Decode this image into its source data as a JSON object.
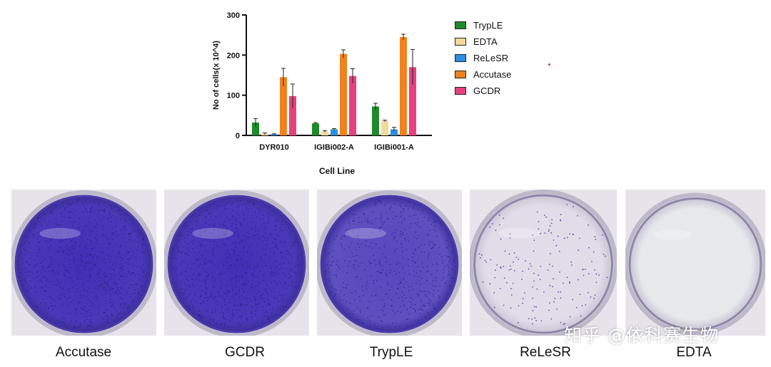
{
  "chart_data": {
    "type": "bar",
    "title": "",
    "xlabel": "Cell Line",
    "ylabel": "No of cells(x 10^4)",
    "ylim": [
      0,
      300
    ],
    "yticks": [
      0,
      100,
      200,
      300
    ],
    "categories": [
      "DYR010",
      "IGIBi002-A",
      "IGIBi001-A"
    ],
    "legend_position": "right",
    "series": [
      {
        "name": "TrypLE",
        "color": "#1f8a2a",
        "values": [
          32,
          30,
          72
        ],
        "errors": [
          10,
          2,
          8
        ]
      },
      {
        "name": "EDTA",
        "color": "#f5d99a",
        "values": [
          4,
          10,
          36
        ],
        "errors": [
          2,
          2,
          2
        ]
      },
      {
        "name": "ReLeSR",
        "color": "#2b8ee0",
        "values": [
          3,
          15,
          15
        ],
        "errors": [
          1,
          2,
          5
        ]
      },
      {
        "name": "Accutase",
        "color": "#f0821e",
        "values": [
          145,
          203,
          245
        ],
        "errors": [
          22,
          10,
          7
        ]
      },
      {
        "name": "GCDR",
        "color": "#e8407e",
        "values": [
          98,
          148,
          170
        ],
        "errors": [
          30,
          18,
          44
        ]
      }
    ]
  },
  "photos": [
    {
      "caption": "Accutase",
      "stain": "heavy"
    },
    {
      "caption": "GCDR",
      "stain": "heavy"
    },
    {
      "caption": "TrypLE",
      "stain": "medium"
    },
    {
      "caption": "ReLeSR",
      "stain": "light"
    },
    {
      "caption": "EDTA",
      "stain": "none"
    }
  ],
  "watermark": "知乎 @依科赛生物"
}
